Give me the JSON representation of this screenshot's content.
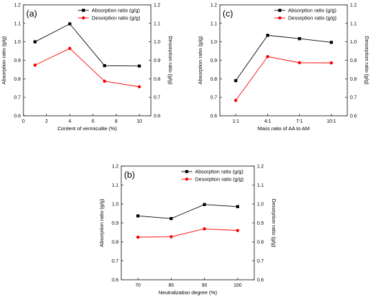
{
  "chart_data": [
    {
      "panel": "(a)",
      "type": "line",
      "xlabel": "Content of vermiculite (%)",
      "ylabel_left": "Absorption ratio (g/g)",
      "ylabel_right": "Desorption ratio (g/g)",
      "xlim": [
        0,
        11
      ],
      "ylim": [
        0.6,
        1.2
      ],
      "x_ticks": [
        "0",
        "2",
        "4",
        "6",
        "8",
        "10"
      ],
      "y_ticks": [
        "0.6",
        "0.7",
        "0.8",
        "0.9",
        "1.0",
        "1.1",
        "1.2"
      ],
      "legend_position": "top-right",
      "series": [
        {
          "name": "Absorption ratio (g/g)",
          "color": "#000000",
          "marker": "square",
          "x": [
            1,
            4,
            7,
            10
          ],
          "values": [
            1.0,
            1.097,
            0.871,
            0.869
          ]
        },
        {
          "name": "Desorption ratio (g/g)",
          "color": "#ff0000",
          "marker": "circle",
          "x": [
            1,
            4,
            7,
            10
          ],
          "values": [
            0.874,
            0.964,
            0.787,
            0.757
          ]
        }
      ]
    },
    {
      "panel": "(c)",
      "type": "line",
      "xlabel": "Mass ratio of AA to AM",
      "ylabel_left": "Absorption ratio (g/g)",
      "ylabel_right": "Desorption ratio (g/g)",
      "categories": [
        "1:1",
        "4:1",
        "7:1",
        "10:1"
      ],
      "ylim": [
        0.6,
        1.2
      ],
      "y_ticks": [
        "0.6",
        "0.7",
        "0.8",
        "0.9",
        "1.0",
        "1.1",
        "1.2"
      ],
      "legend_position": "top-right",
      "series": [
        {
          "name": "Absorption ratio (g/g)",
          "color": "#000000",
          "marker": "square",
          "values": [
            0.79,
            1.035,
            1.017,
            0.997
          ]
        },
        {
          "name": "Desorption ratio (g/g)",
          "color": "#ff0000",
          "marker": "circle",
          "values": [
            0.683,
            0.92,
            0.887,
            0.886
          ]
        }
      ]
    },
    {
      "panel": "(b)",
      "type": "line",
      "xlabel": "Neutralization degree (%)",
      "ylabel_left": "Absorption ratio (g/g)",
      "ylabel_right": "Desorption ratio (g/g)",
      "xlim": [
        65,
        105
      ],
      "ylim": [
        0.6,
        1.2
      ],
      "x_ticks": [
        "70",
        "80",
        "90",
        "100"
      ],
      "y_ticks": [
        "0.6",
        "0.7",
        "0.8",
        "0.9",
        "1.0",
        "1.1",
        "1.2"
      ],
      "legend_position": "top-right",
      "series": [
        {
          "name": "Absorption ratio (g/g)",
          "color": "#000000",
          "marker": "square",
          "x": [
            70,
            80,
            90,
            100
          ],
          "values": [
            0.937,
            0.923,
            0.997,
            0.986
          ]
        },
        {
          "name": "Desorption ratio (g/g)",
          "color": "#ff0000",
          "marker": "circle",
          "x": [
            70,
            80,
            90,
            100
          ],
          "values": [
            0.825,
            0.827,
            0.869,
            0.86
          ]
        }
      ]
    }
  ]
}
